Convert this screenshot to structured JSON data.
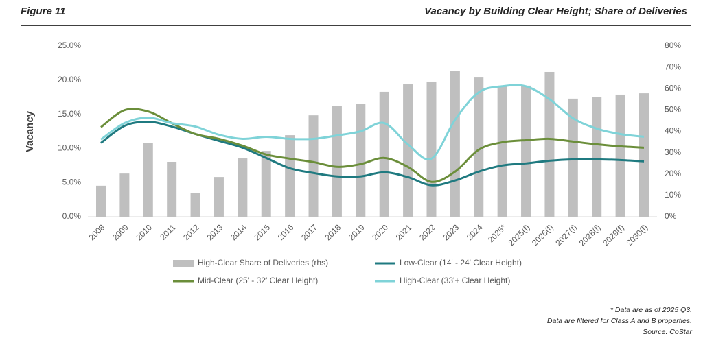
{
  "chart_data": {
    "type": "combo",
    "figure_label": "Figure 11",
    "title": "Vacancy by Building Clear Height; Share of Deliveries",
    "y_label": "Vacancy",
    "categories": [
      "2008",
      "2009",
      "2010",
      "2011",
      "2012",
      "2013",
      "2014",
      "2015",
      "2016",
      "2017",
      "2018",
      "2019",
      "2020",
      "2021",
      "2022",
      "2023",
      "2024",
      "2025*",
      "2025(f)",
      "2026(f)",
      "2027(f)",
      "2028(f)",
      "2029(f)",
      "2030(f)"
    ],
    "ylim": [
      0,
      25
    ],
    "yticks": [
      {
        "value": 0,
        "label": "0.0%"
      },
      {
        "value": 5,
        "label": "5.0%"
      },
      {
        "value": 10,
        "label": "10.0%"
      },
      {
        "value": 15,
        "label": "15.0%"
      },
      {
        "value": 20,
        "label": "20.0%"
      },
      {
        "value": 25,
        "label": "25.0%"
      }
    ],
    "y2lim": [
      0,
      80
    ],
    "y2ticks": [
      {
        "value": 0,
        "label": "0%"
      },
      {
        "value": 10,
        "label": "10%"
      },
      {
        "value": 20,
        "label": "20%"
      },
      {
        "value": 30,
        "label": "30%"
      },
      {
        "value": 40,
        "label": "40%"
      },
      {
        "value": 50,
        "label": "50%"
      },
      {
        "value": 60,
        "label": "60%"
      },
      {
        "value": 70,
        "label": "70%"
      },
      {
        "value": 80,
        "label": "80%"
      }
    ],
    "series": [
      {
        "name": "High-Clear Share of Deliveries (rhs)",
        "type": "bar",
        "axis": "y2",
        "color": "#bfbfbf",
        "values": [
          14.5,
          20.2,
          34.7,
          25.7,
          11.2,
          18.6,
          27.3,
          30.8,
          38.2,
          47.5,
          52.0,
          52.7,
          58.5,
          62.0,
          63.3,
          68.4,
          65.2,
          61.4,
          61.4,
          67.8,
          55.3,
          56.2,
          57.2,
          57.8
        ]
      },
      {
        "name": "Low-Clear (14' - 24' Clear Height)",
        "type": "line",
        "color": "#1f7a80",
        "values": [
          10.8,
          13.3,
          13.9,
          13.2,
          12.1,
          11.1,
          10.1,
          8.6,
          7.1,
          6.4,
          5.9,
          5.9,
          6.5,
          5.8,
          4.6,
          5.3,
          6.6,
          7.5,
          7.8,
          8.2,
          8.4,
          8.4,
          8.3,
          8.1
        ]
      },
      {
        "name": "Mid-Clear (25' - 32' Clear Height)",
        "type": "line",
        "color": "#6b8e3a",
        "values": [
          13.1,
          15.6,
          15.4,
          13.7,
          12.1,
          11.4,
          10.4,
          9.1,
          8.5,
          8.0,
          7.3,
          7.7,
          8.6,
          7.3,
          5.1,
          6.6,
          9.8,
          10.9,
          11.2,
          11.4,
          11.0,
          10.6,
          10.3,
          10.1
        ]
      },
      {
        "name": "High-Clear (33'+ Clear Height)",
        "type": "line",
        "color": "#7fd3d8",
        "values": [
          11.3,
          13.7,
          14.5,
          13.7,
          13.2,
          12.0,
          11.4,
          11.7,
          11.4,
          11.4,
          11.9,
          12.5,
          13.7,
          10.6,
          8.5,
          14.2,
          18.2,
          19.1,
          19.1,
          17.2,
          14.4,
          12.9,
          12.1,
          11.7
        ]
      }
    ],
    "notes": [
      "* Data are as of 2025 Q3.",
      "Data are filtered for Class A and B properties.",
      "Source: CoStar"
    ]
  }
}
